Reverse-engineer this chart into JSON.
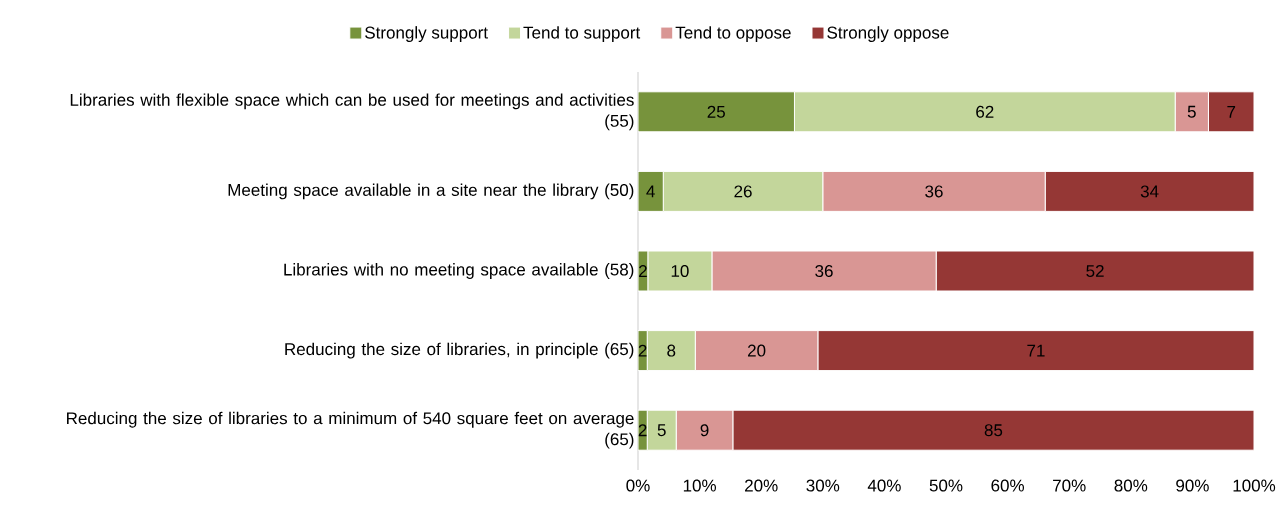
{
  "chart_data": {
    "type": "bar",
    "orientation": "horizontal",
    "stacked": true,
    "categories": [
      "Libraries with flexible space which can be used for meetings and activities (55)",
      "Meeting space available in a site near the library (50)",
      "Libraries with no meeting space available (58)",
      "Reducing the size of libraries, in principle (65)",
      "Reducing the size of libraries to a minimum of 540 square feet on average (65)"
    ],
    "series": [
      {
        "name": "Strongly support",
        "color": "#77933c",
        "values": [
          25.4,
          4.1,
          1.6,
          1.5,
          1.5
        ],
        "value_labels": [
          "25",
          "4",
          "2",
          "2",
          "2"
        ]
      },
      {
        "name": "Tend to support",
        "color": "#c3d69b",
        "values": [
          61.8,
          25.9,
          10.4,
          7.8,
          4.7
        ],
        "value_labels": [
          "62",
          "26",
          "10",
          "8",
          "5"
        ]
      },
      {
        "name": "Tend to oppose",
        "color": "#d99694",
        "values": [
          5.4,
          36.1,
          36.4,
          19.9,
          9.2
        ],
        "value_labels": [
          "5",
          "36",
          "36",
          "20",
          "9"
        ]
      },
      {
        "name": "Strongly oppose",
        "color": "#953735",
        "values": [
          7.4,
          33.9,
          51.6,
          70.8,
          84.6
        ],
        "value_labels": [
          "7",
          "34",
          "52",
          "71",
          "85"
        ]
      }
    ],
    "xlim": [
      0,
      100
    ],
    "xticks": [
      {
        "value": 0,
        "label": "0%"
      },
      {
        "value": 10,
        "label": "10%"
      },
      {
        "value": 20,
        "label": "20%"
      },
      {
        "value": 30,
        "label": "30%"
      },
      {
        "value": 40,
        "label": "40%"
      },
      {
        "value": 50,
        "label": "50%"
      },
      {
        "value": 60,
        "label": "60%"
      },
      {
        "value": 70,
        "label": "70%"
      },
      {
        "value": 80,
        "label": "80%"
      },
      {
        "value": 90,
        "label": "90%"
      },
      {
        "value": 100,
        "label": "100%"
      }
    ],
    "legend": "top"
  }
}
